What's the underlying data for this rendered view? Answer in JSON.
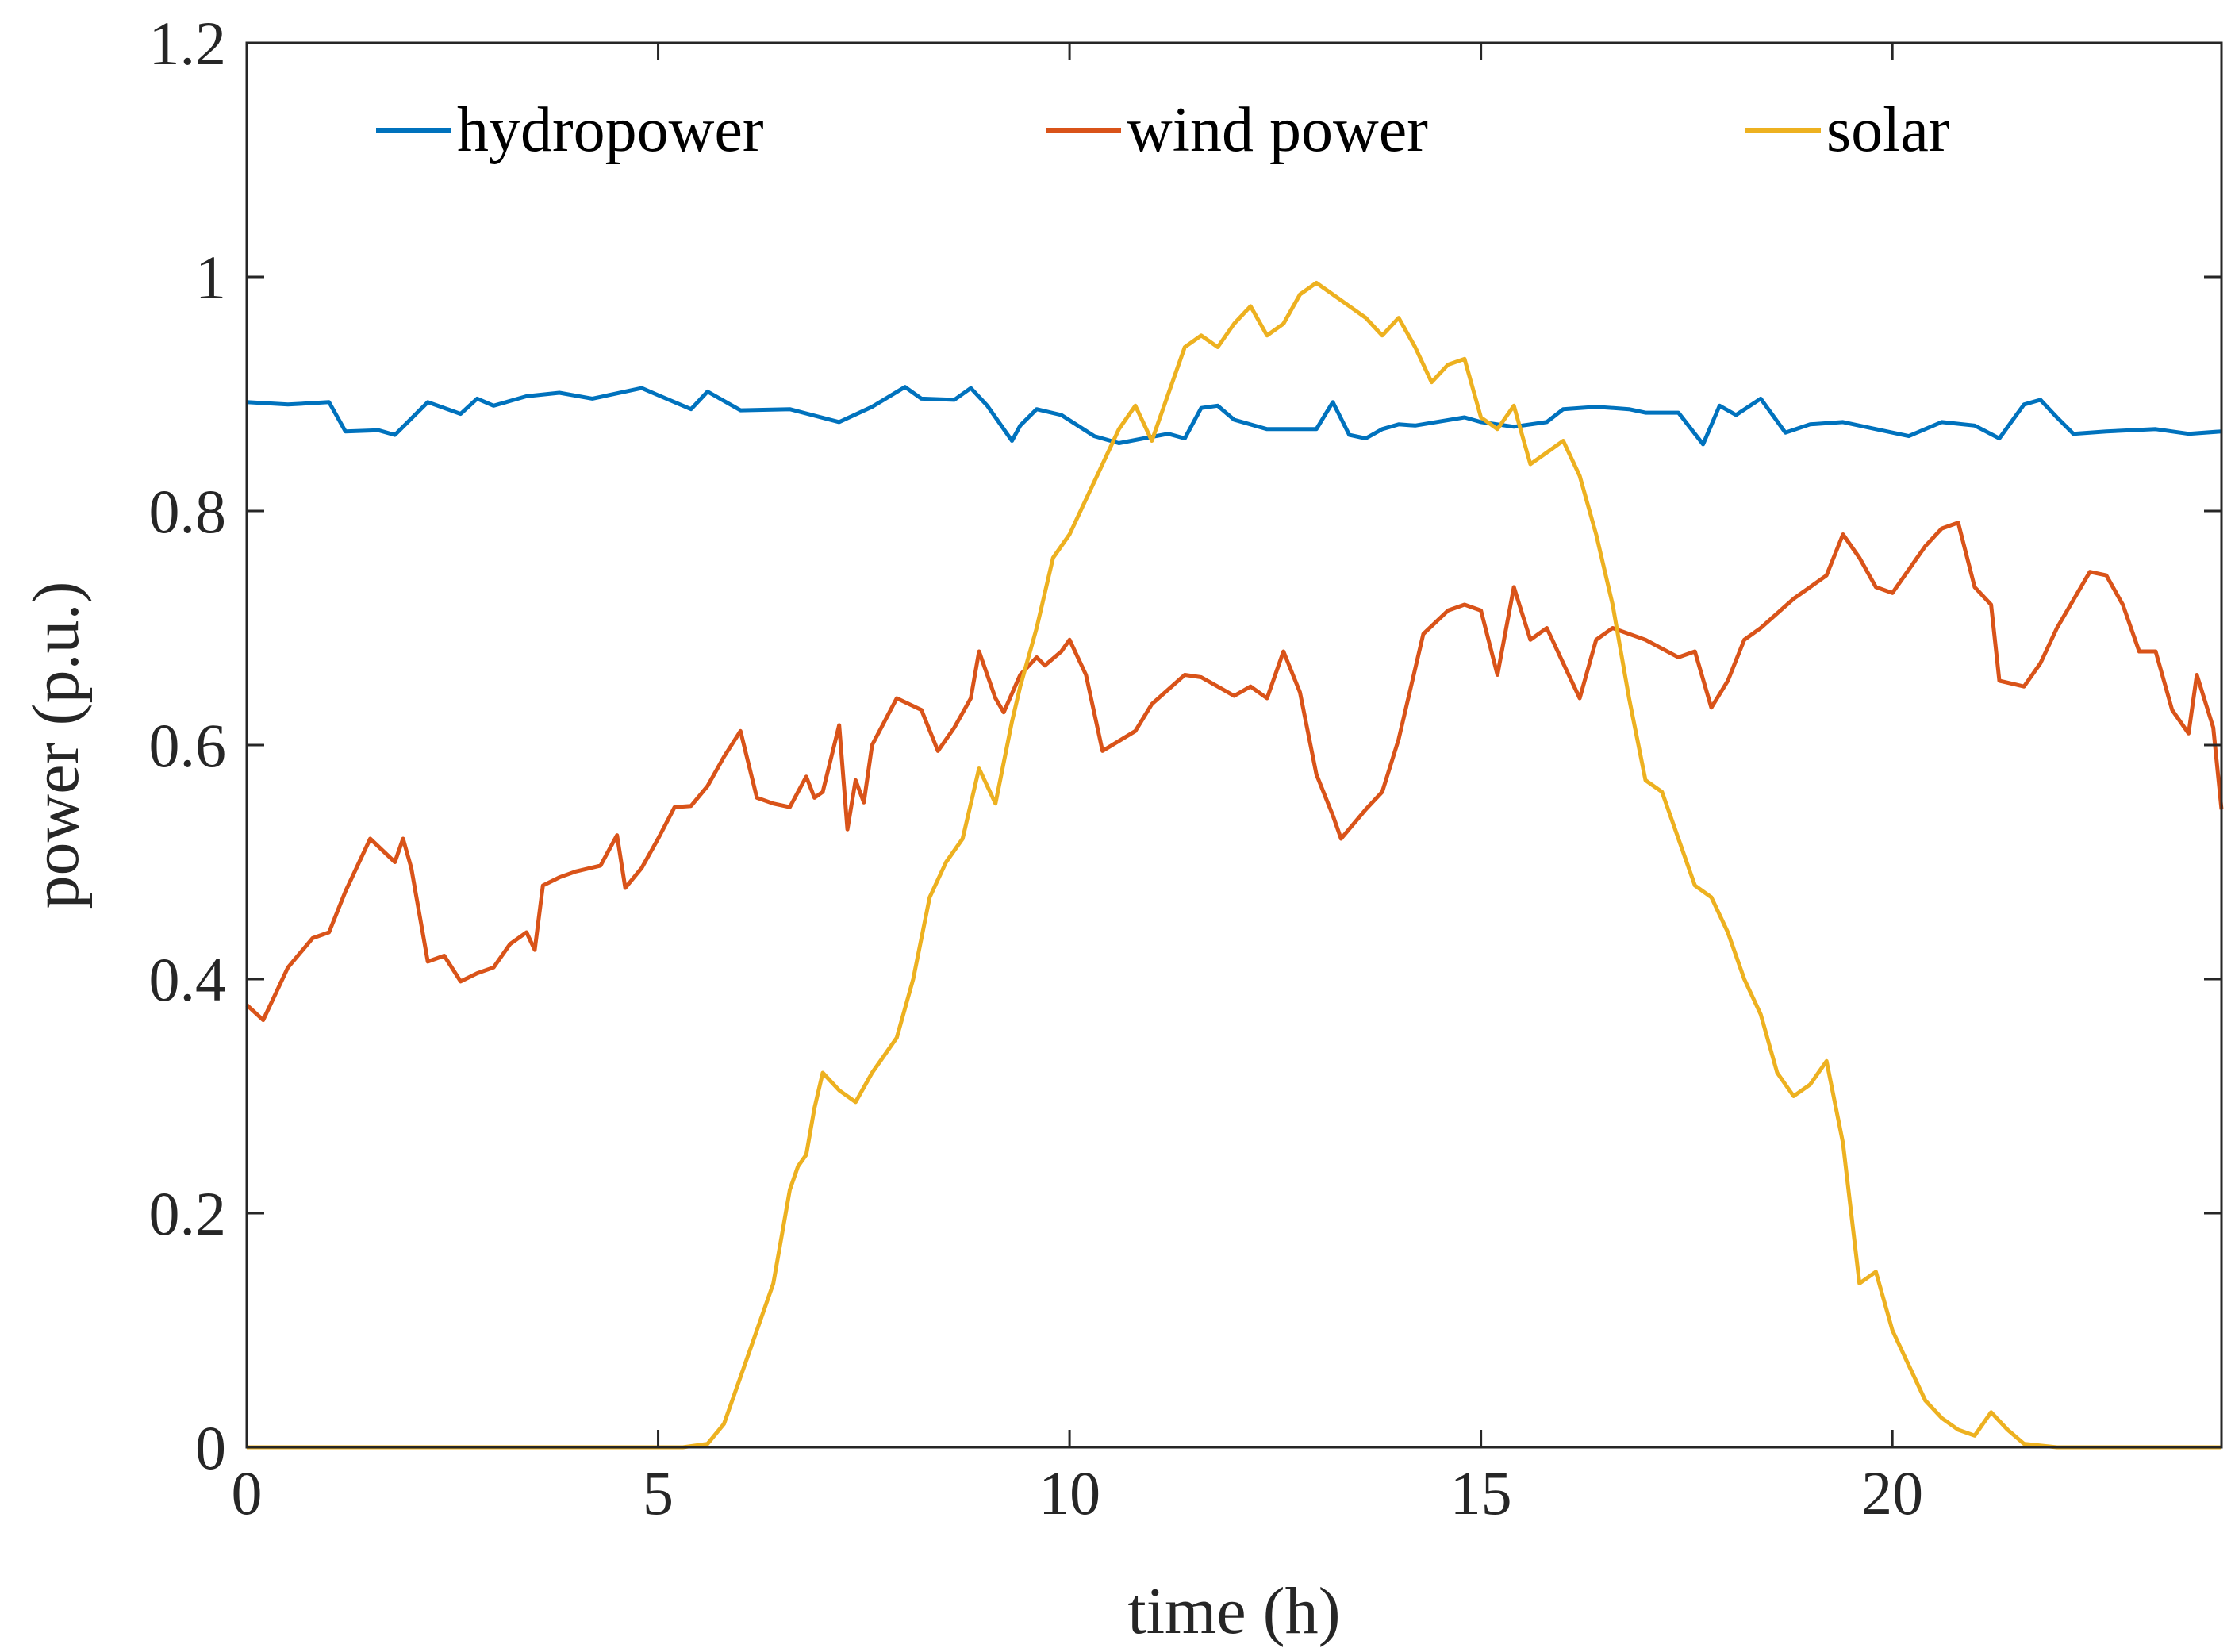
{
  "chart_data": {
    "type": "line",
    "title": "",
    "xlabel": "time (h)",
    "ylabel": "power (p.u.)",
    "xlim": [
      0,
      24
    ],
    "ylim": [
      0,
      1.2
    ],
    "xticks": [
      0,
      5,
      10,
      15,
      20
    ],
    "xtick_labels": [
      "0",
      "5",
      "10",
      "15",
      "20"
    ],
    "yticks": [
      0,
      0.2,
      0.4,
      0.6,
      0.8,
      1.0,
      1.2
    ],
    "ytick_labels": [
      "0",
      "0.2",
      "0.4",
      "0.6",
      "0.8",
      "1",
      "1.2"
    ],
    "grid": false,
    "legend_position": "top",
    "series": [
      {
        "name": "hydropower",
        "color": "#0072BD",
        "x": [
          0,
          0.5,
          1,
          1.2,
          1.6,
          1.8,
          2.2,
          2.6,
          2.8,
          3.0,
          3.4,
          3.8,
          4.2,
          4.8,
          5.0,
          5.4,
          5.6,
          6.0,
          6.6,
          7.2,
          7.6,
          8.0,
          8.2,
          8.6,
          8.8,
          9.0,
          9.3,
          9.4,
          9.6,
          9.9,
          10.3,
          10.6,
          10.9,
          11.2,
          11.4,
          11.6,
          11.8,
          12.0,
          12.4,
          13.0,
          13.2,
          13.4,
          13.6,
          13.8,
          14.0,
          14.2,
          14.8,
          15.0,
          15.4,
          15.8,
          16.0,
          16.4,
          16.8,
          17.0,
          17.4,
          17.7,
          17.9,
          18.1,
          18.4,
          18.7,
          19.0,
          19.4,
          19.8,
          20.2,
          20.6,
          21.0,
          21.3,
          21.6,
          21.8,
          22.0,
          22.2,
          22.6,
          23.2,
          23.6,
          24
        ],
        "y": [
          0.893,
          0.891,
          0.893,
          0.868,
          0.869,
          0.865,
          0.893,
          0.883,
          0.896,
          0.89,
          0.898,
          0.901,
          0.896,
          0.905,
          0.899,
          0.887,
          0.902,
          0.886,
          0.887,
          0.876,
          0.889,
          0.906,
          0.896,
          0.895,
          0.905,
          0.89,
          0.86,
          0.873,
          0.887,
          0.882,
          0.864,
          0.858,
          0.862,
          0.866,
          0.862,
          0.888,
          0.89,
          0.878,
          0.87,
          0.87,
          0.893,
          0.865,
          0.862,
          0.87,
          0.874,
          0.873,
          0.88,
          0.876,
          0.872,
          0.876,
          0.887,
          0.889,
          0.887,
          0.884,
          0.884,
          0.857,
          0.89,
          0.882,
          0.896,
          0.867,
          0.874,
          0.876,
          0.87,
          0.864,
          0.876,
          0.873,
          0.862,
          0.891,
          0.895,
          0.88,
          0.866,
          0.868,
          0.87,
          0.866,
          0.868
        ]
      },
      {
        "name": "wind power",
        "color": "#D95319",
        "x": [
          0,
          0.2,
          0.5,
          0.8,
          1.0,
          1.2,
          1.5,
          1.8,
          1.9,
          2.0,
          2.2,
          2.4,
          2.6,
          2.8,
          3.0,
          3.2,
          3.4,
          3.5,
          3.6,
          3.8,
          4.0,
          4.3,
          4.5,
          4.6,
          4.8,
          5.0,
          5.2,
          5.4,
          5.6,
          5.8,
          6.0,
          6.2,
          6.4,
          6.6,
          6.8,
          6.9,
          7.0,
          7.2,
          7.3,
          7.4,
          7.5,
          7.6,
          7.9,
          8.2,
          8.4,
          8.6,
          8.8,
          8.9,
          9.1,
          9.2,
          9.4,
          9.6,
          9.7,
          9.9,
          10.0,
          10.2,
          10.4,
          10.8,
          11.0,
          11.4,
          11.6,
          11.8,
          12.0,
          12.2,
          12.4,
          12.6,
          12.8,
          13.0,
          13.2,
          13.3,
          13.6,
          13.8,
          14.0,
          14.3,
          14.6,
          14.8,
          15.0,
          15.2,
          15.4,
          15.6,
          15.8,
          16.0,
          16.2,
          16.4,
          16.6,
          17.0,
          17.4,
          17.6,
          17.8,
          18.0,
          18.2,
          18.4,
          18.8,
          19.0,
          19.2,
          19.4,
          19.6,
          19.8,
          20.0,
          20.4,
          20.6,
          20.8,
          21.0,
          21.2,
          21.3,
          21.6,
          21.8,
          22.0,
          22.4,
          22.6,
          22.8,
          23.0,
          23.2,
          23.4,
          23.6,
          23.7,
          23.9,
          24
        ],
        "y": [
          0.378,
          0.365,
          0.41,
          0.435,
          0.44,
          0.475,
          0.52,
          0.5,
          0.52,
          0.495,
          0.415,
          0.42,
          0.398,
          0.405,
          0.41,
          0.43,
          0.44,
          0.425,
          0.48,
          0.487,
          0.492,
          0.497,
          0.523,
          0.478,
          0.495,
          0.52,
          0.547,
          0.548,
          0.565,
          0.59,
          0.612,
          0.555,
          0.55,
          0.547,
          0.573,
          0.555,
          0.56,
          0.617,
          0.528,
          0.57,
          0.551,
          0.6,
          0.64,
          0.63,
          0.595,
          0.615,
          0.64,
          0.68,
          0.64,
          0.628,
          0.66,
          0.675,
          0.668,
          0.68,
          0.69,
          0.66,
          0.595,
          0.612,
          0.635,
          0.66,
          0.658,
          0.65,
          0.642,
          0.65,
          0.64,
          0.68,
          0.645,
          0.575,
          0.54,
          0.52,
          0.545,
          0.56,
          0.605,
          0.695,
          0.715,
          0.72,
          0.715,
          0.66,
          0.735,
          0.69,
          0.7,
          0.67,
          0.64,
          0.69,
          0.7,
          0.69,
          0.675,
          0.68,
          0.632,
          0.655,
          0.69,
          0.7,
          0.725,
          0.735,
          0.745,
          0.78,
          0.76,
          0.735,
          0.73,
          0.77,
          0.785,
          0.79,
          0.735,
          0.72,
          0.655,
          0.65,
          0.67,
          0.7,
          0.748,
          0.745,
          0.72,
          0.68,
          0.68,
          0.63,
          0.61,
          0.66,
          0.615,
          0.545
        ]
      },
      {
        "name": "solar",
        "color": "#EDB120",
        "x": [
          0,
          5.0,
          5.3,
          5.6,
          5.8,
          6.0,
          6.2,
          6.4,
          6.5,
          6.6,
          6.7,
          6.8,
          6.9,
          7.0,
          7.2,
          7.4,
          7.6,
          7.9,
          8.1,
          8.3,
          8.5,
          8.7,
          8.9,
          9.1,
          9.2,
          9.3,
          9.4,
          9.6,
          9.8,
          10.0,
          10.2,
          10.4,
          10.6,
          10.8,
          11.0,
          11.2,
          11.4,
          11.6,
          11.8,
          12.0,
          12.2,
          12.4,
          12.6,
          12.8,
          13.0,
          13.2,
          13.4,
          13.6,
          13.8,
          14.0,
          14.2,
          14.4,
          14.6,
          14.8,
          15.0,
          15.2,
          15.4,
          15.6,
          15.8,
          16.0,
          16.2,
          16.4,
          16.6,
          16.8,
          17.0,
          17.2,
          17.4,
          17.6,
          17.8,
          18.0,
          18.2,
          18.4,
          18.6,
          18.8,
          19.0,
          19.2,
          19.4,
          19.6,
          19.8,
          20.0,
          20.2,
          20.4,
          20.6,
          20.8,
          21.0,
          21.2,
          21.4,
          21.6,
          22.0,
          24
        ],
        "y": [
          0,
          0,
          0,
          0.003,
          0.02,
          0.06,
          0.1,
          0.14,
          0.18,
          0.22,
          0.24,
          0.25,
          0.29,
          0.32,
          0.305,
          0.295,
          0.32,
          0.35,
          0.4,
          0.47,
          0.5,
          0.52,
          0.58,
          0.55,
          0.585,
          0.62,
          0.65,
          0.7,
          0.76,
          0.78,
          0.81,
          0.84,
          0.87,
          0.89,
          0.86,
          0.9,
          0.94,
          0.95,
          0.94,
          0.96,
          0.975,
          0.95,
          0.96,
          0.985,
          0.995,
          0.985,
          0.975,
          0.965,
          0.95,
          0.965,
          0.94,
          0.91,
          0.925,
          0.93,
          0.88,
          0.87,
          0.89,
          0.84,
          0.85,
          0.86,
          0.83,
          0.78,
          0.72,
          0.64,
          0.57,
          0.56,
          0.52,
          0.48,
          0.47,
          0.44,
          0.4,
          0.37,
          0.32,
          0.3,
          0.31,
          0.33,
          0.26,
          0.14,
          0.15,
          0.1,
          0.07,
          0.04,
          0.025,
          0.015,
          0.01,
          0.03,
          0.015,
          0.003,
          0,
          0
        ]
      }
    ]
  }
}
